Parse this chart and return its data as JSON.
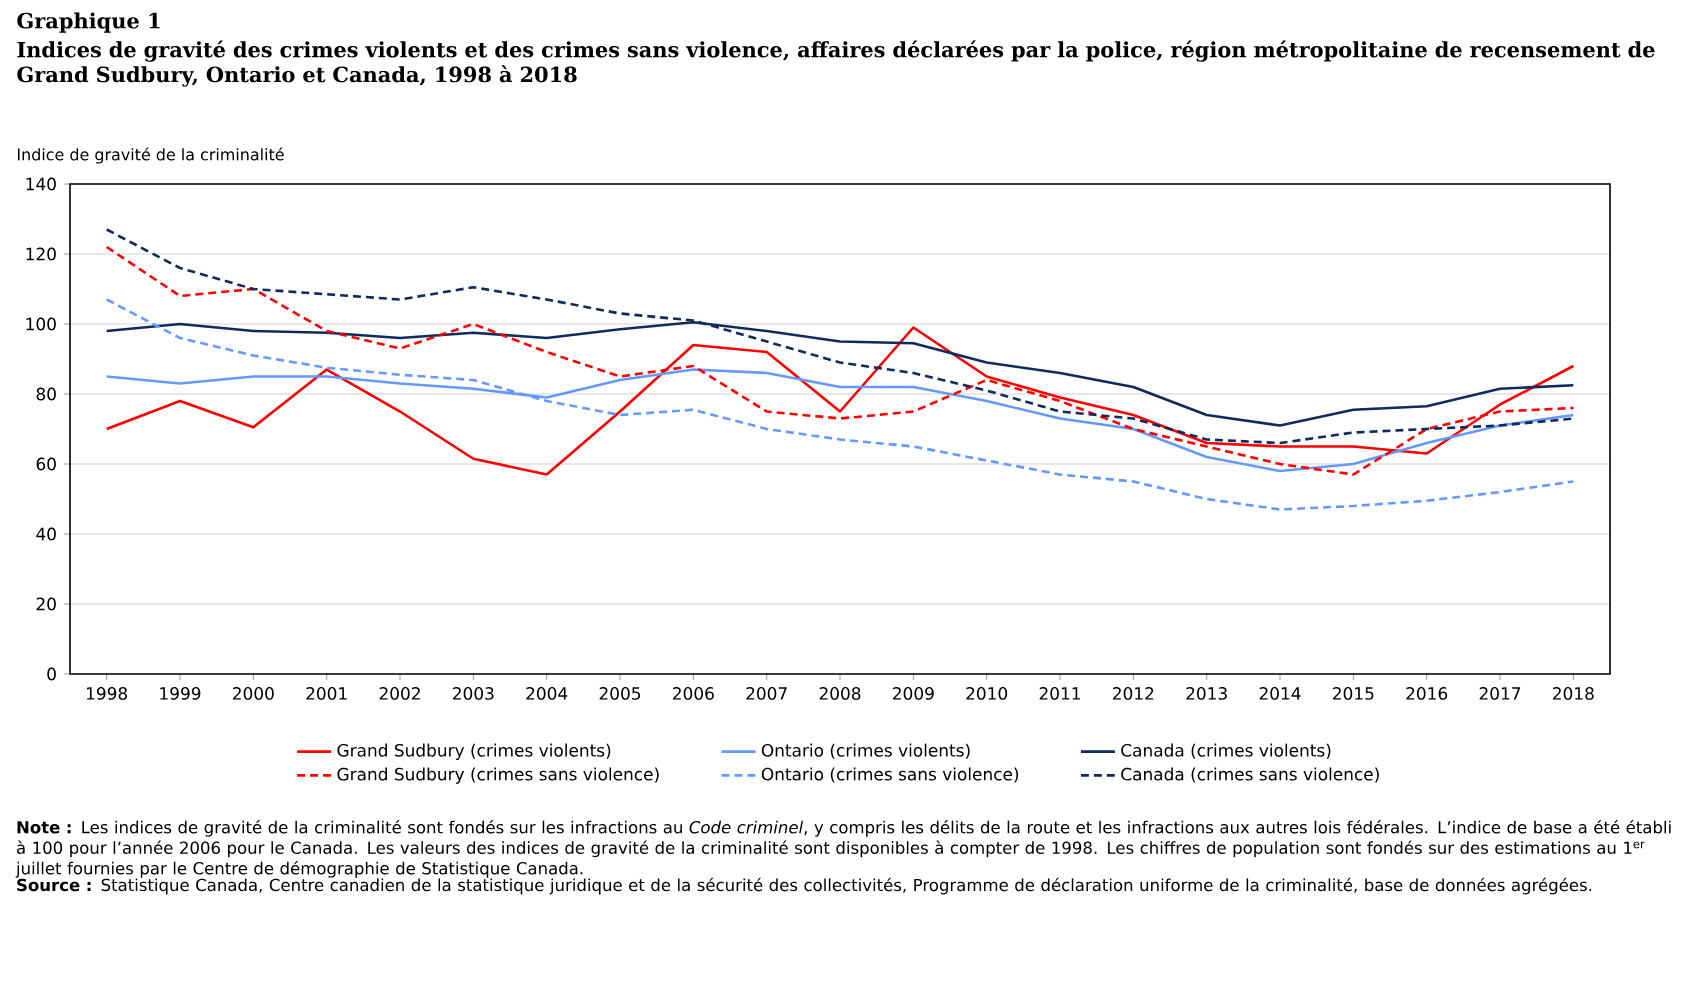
{
  "chart_data": {
    "type": "line",
    "title": "Graphique 1",
    "subtitle": "Indices de gravité des crimes violents et des crimes sans violence, affaires déclarées par la police, région métropolitaine de recensement de Grand Sudbury, Ontario et Canada, 1998 à 2018",
    "ylabel": "Indice de gravité de la criminalité",
    "categories": [
      "1998",
      "1999",
      "2000",
      "2001",
      "2002",
      "2003",
      "2004",
      "2005",
      "2006",
      "2007",
      "2008",
      "2009",
      "2010",
      "2011",
      "2012",
      "2013",
      "2014",
      "2015",
      "2016",
      "2017",
      "2018"
    ],
    "series": [
      {
        "name": "Grand Sudbury (crimes violents)",
        "color": "#ff0000",
        "line_style": "solid",
        "values": [
          70,
          78,
          70.5,
          87,
          75,
          61.5,
          57,
          75,
          94,
          92,
          75,
          99,
          85,
          79,
          74,
          66,
          65,
          65,
          63,
          77,
          88
        ]
      },
      {
        "name": "Ontario (crimes violents)",
        "color": "#6699ff",
        "line_style": "solid",
        "values": [
          85,
          83,
          85,
          85,
          83,
          81.5,
          79,
          84,
          87,
          86,
          82,
          82,
          78,
          73,
          70,
          62,
          58,
          60,
          66,
          71,
          74
        ]
      },
      {
        "name": "Canada (crimes violents)",
        "color": "#0f2a5c",
        "line_style": "solid",
        "values": [
          98,
          100,
          98,
          97.5,
          96,
          97.5,
          96,
          98.5,
          100.5,
          98,
          95,
          94.5,
          89,
          86,
          82,
          74,
          71,
          75.5,
          76.5,
          81.5,
          82.5
        ]
      },
      {
        "name": "Grand Sudbury (crimes sans violence)",
        "color": "#ff0000",
        "line_style": "dashed",
        "values": [
          122,
          108,
          110,
          98,
          93,
          100,
          92,
          85,
          88,
          75,
          73,
          75,
          84,
          78,
          70,
          65,
          60,
          57,
          70,
          75,
          76
        ]
      },
      {
        "name": "Ontario (crimes sans violence)",
        "color": "#6699ff",
        "line_style": "dashed",
        "values": [
          107,
          96,
          91,
          87.5,
          85.5,
          84,
          78,
          74,
          75.5,
          70,
          67,
          65,
          61,
          57,
          55,
          50,
          47,
          48,
          49.5,
          52,
          55
        ]
      },
      {
        "name": "Canada (crimes sans violence)",
        "color": "#0f2a5c",
        "line_style": "dashed",
        "values": [
          127,
          116,
          110,
          108.5,
          107,
          110.5,
          107,
          103,
          101,
          95,
          89,
          86,
          81,
          75,
          73,
          67,
          66,
          69,
          70,
          71,
          73
        ]
      }
    ],
    "ylim": [
      0,
      140
    ],
    "yticks": [
      0,
      20,
      40,
      60,
      80,
      100,
      120,
      140
    ],
    "grid": "y",
    "legend": "bottom",
    "annotations": [
      "**Note :** Les indices de gravité de la criminalité sont fondés sur les infractions au *Code criminel*, y compris les délits de la route et les infractions aux autres lois fédérales. L’indice de base a été établi à 100 pour l’année 2006 pour le Canada. Les valeurs des indices de gravité de la criminalité sont disponibles à compter de 1998. Les chiffres de population sont fondés sur des estimations au 1$^{er}$ juillet fournies par le Centre de démographie de Statistique Canada.",
      "**Source :** Statistique Canada, Centre canadien de la statistique juridique et de la sécurité des collectivités, Programme de déclaration uniforme de la criminalité, base de données agrégées."
    ]
  }
}
